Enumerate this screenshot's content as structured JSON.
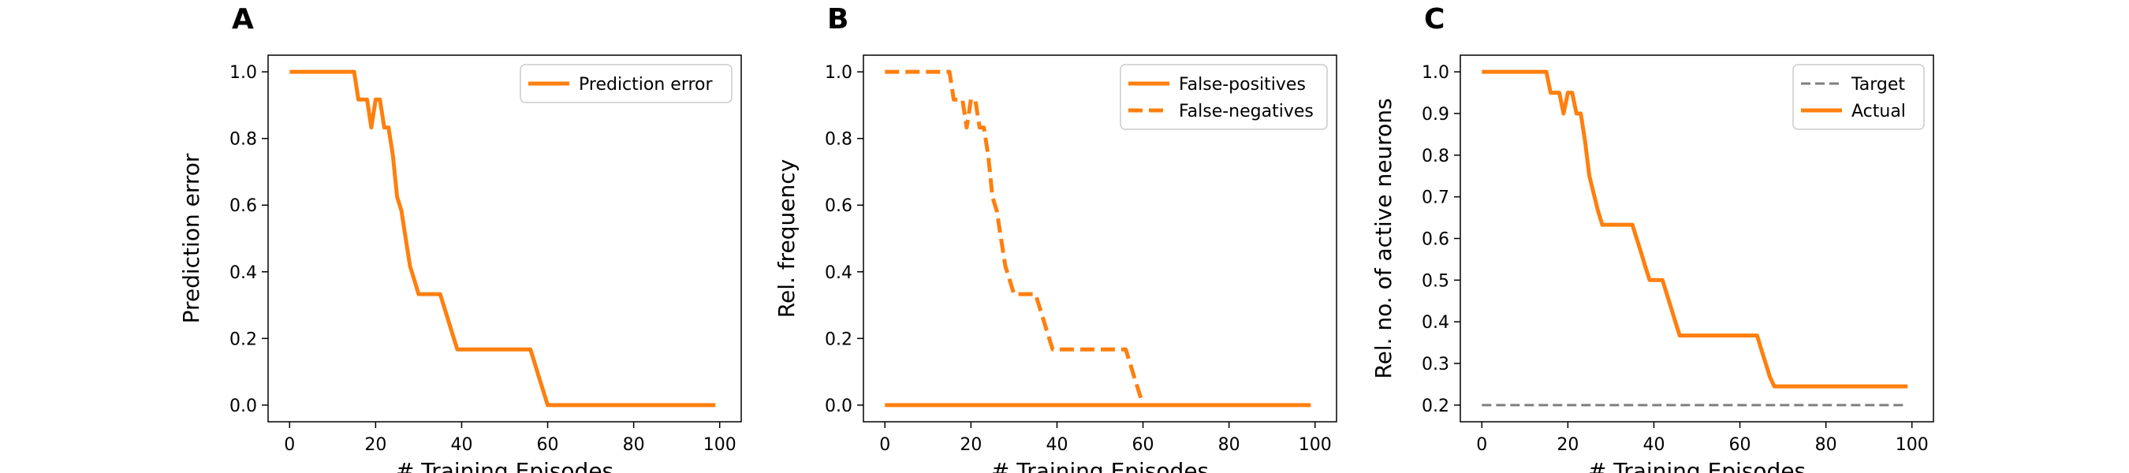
{
  "colors": {
    "actual": "#ff7f0e",
    "target": "#7f7f7f",
    "axis": "#000000",
    "background": "#ffffff"
  },
  "chart_data": [
    {
      "panel": "A",
      "type": "line",
      "title": "",
      "xlabel": "# Training Episodes",
      "ylabel": "Prediction error",
      "xlim": [
        -5,
        105
      ],
      "ylim": [
        -0.05,
        1.05
      ],
      "xticks": [
        0,
        20,
        40,
        60,
        80,
        100
      ],
      "yticks": [
        0.0,
        0.2,
        0.4,
        0.6,
        0.8,
        1.0
      ],
      "ytick_labels": [
        "0.0",
        "0.2",
        "0.4",
        "0.6",
        "0.8",
        "1.0"
      ],
      "legend_position": "upper right",
      "series": [
        {
          "name": "Prediction error",
          "style": "solid",
          "color": "#ff7f0e",
          "x": [
            0,
            15,
            16,
            18,
            19,
            20,
            21,
            22,
            23,
            24,
            25,
            26,
            27,
            28,
            29,
            30,
            31,
            32,
            33,
            34,
            35,
            36,
            37,
            38,
            39,
            40,
            41,
            50,
            55,
            56,
            57,
            58,
            59,
            60,
            70,
            80,
            90,
            99
          ],
          "y": [
            1.0,
            1.0,
            0.917,
            0.917,
            0.833,
            0.917,
            0.917,
            0.833,
            0.833,
            0.75,
            0.625,
            0.583,
            0.5,
            0.417,
            0.375,
            0.333,
            0.333,
            0.333,
            0.333,
            0.333,
            0.333,
            0.292,
            0.25,
            0.208,
            0.167,
            0.167,
            0.167,
            0.167,
            0.167,
            0.167,
            0.125,
            0.083,
            0.042,
            0.0,
            0.0,
            0.0,
            0.0,
            0.0
          ]
        }
      ]
    },
    {
      "panel": "B",
      "type": "line",
      "title": "",
      "xlabel": "# Training Episodes",
      "ylabel": "Rel. frequency",
      "xlim": [
        -5,
        105
      ],
      "ylim": [
        -0.05,
        1.05
      ],
      "xticks": [
        0,
        20,
        40,
        60,
        80,
        100
      ],
      "yticks": [
        0.0,
        0.2,
        0.4,
        0.6,
        0.8,
        1.0
      ],
      "ytick_labels": [
        "0.0",
        "0.2",
        "0.4",
        "0.6",
        "0.8",
        "1.0"
      ],
      "legend_position": "upper right",
      "series": [
        {
          "name": "False-positives",
          "style": "solid",
          "color": "#ff7f0e",
          "x": [
            0,
            99
          ],
          "y": [
            0.0,
            0.0
          ]
        },
        {
          "name": "False-negatives",
          "style": "dashed",
          "color": "#ff7f0e",
          "x": [
            0,
            15,
            16,
            18,
            19,
            20,
            21,
            22,
            23,
            24,
            25,
            26,
            27,
            28,
            29,
            30,
            31,
            32,
            33,
            34,
            35,
            36,
            37,
            38,
            39,
            40,
            41,
            50,
            55,
            56,
            57,
            58,
            59,
            60
          ],
          "y": [
            1.0,
            1.0,
            0.917,
            0.917,
            0.833,
            0.917,
            0.917,
            0.833,
            0.833,
            0.75,
            0.625,
            0.583,
            0.5,
            0.417,
            0.375,
            0.333,
            0.333,
            0.333,
            0.333,
            0.333,
            0.333,
            0.292,
            0.25,
            0.208,
            0.167,
            0.167,
            0.167,
            0.167,
            0.167,
            0.167,
            0.125,
            0.083,
            0.042,
            0.0
          ]
        }
      ]
    },
    {
      "panel": "C",
      "type": "line",
      "title": "",
      "xlabel": "# Training Episodes",
      "ylabel": "Rel. no. of active neurons",
      "xlim": [
        -5,
        105
      ],
      "ylim": [
        0.16,
        1.04
      ],
      "xticks": [
        0,
        20,
        40,
        60,
        80,
        100
      ],
      "yticks": [
        0.2,
        0.3,
        0.4,
        0.5,
        0.6,
        0.7,
        0.8,
        0.9,
        1.0
      ],
      "ytick_labels": [
        "0.2",
        "0.3",
        "0.4",
        "0.5",
        "0.6",
        "0.7",
        "0.8",
        "0.9",
        "1.0"
      ],
      "legend_position": "upper right",
      "series": [
        {
          "name": "Target",
          "style": "dashed",
          "color": "#7f7f7f",
          "x": [
            0,
            99
          ],
          "y": [
            0.2,
            0.2
          ]
        },
        {
          "name": "Actual",
          "style": "solid",
          "color": "#ff7f0e",
          "x": [
            0,
            15,
            16,
            18,
            19,
            20,
            21,
            22,
            23,
            24,
            25,
            26,
            27,
            28,
            29,
            30,
            35,
            36,
            37,
            38,
            39,
            40,
            41,
            42,
            43,
            44,
            45,
            46,
            47,
            48,
            60,
            64,
            65,
            66,
            67,
            68,
            70,
            80,
            90,
            99
          ],
          "y": [
            1.0,
            1.0,
            0.95,
            0.95,
            0.9,
            0.95,
            0.95,
            0.9,
            0.9,
            0.833,
            0.75,
            0.708,
            0.667,
            0.633,
            0.633,
            0.633,
            0.633,
            0.6,
            0.567,
            0.533,
            0.5,
            0.5,
            0.5,
            0.5,
            0.467,
            0.433,
            0.4,
            0.367,
            0.367,
            0.367,
            0.367,
            0.367,
            0.333,
            0.3,
            0.267,
            0.245,
            0.245,
            0.245,
            0.245,
            0.245
          ]
        }
      ]
    }
  ]
}
